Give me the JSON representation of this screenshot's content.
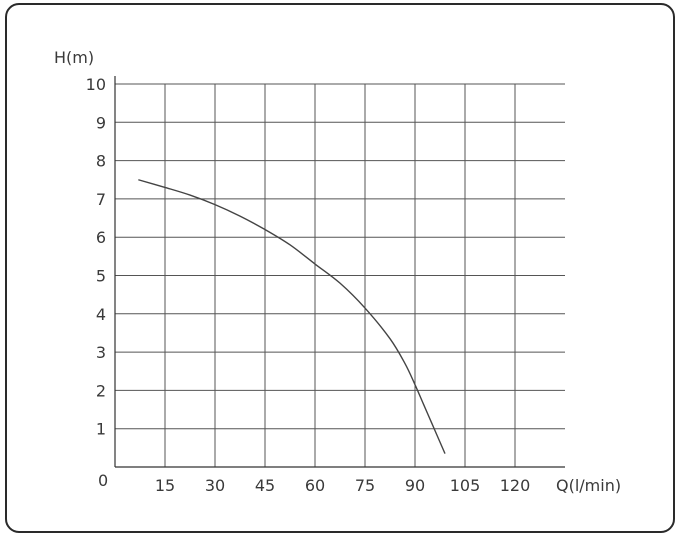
{
  "chart_data": {
    "type": "line",
    "title": "",
    "xlabel": "Q(l/min)",
    "ylabel": "H(m)",
    "origin_label": "0",
    "xlim": [
      0,
      135
    ],
    "ylim": [
      0,
      10
    ],
    "x_ticks": [
      15,
      30,
      45,
      60,
      75,
      90,
      105,
      120
    ],
    "x_tick_labels": [
      "15",
      "30",
      "45",
      "60",
      "75",
      "90",
      "105",
      "120"
    ],
    "y_ticks": [
      1,
      2,
      3,
      4,
      5,
      6,
      7,
      8,
      9,
      10
    ],
    "y_tick_labels": [
      "1",
      "2",
      "3",
      "4",
      "5",
      "6",
      "7",
      "8",
      "9",
      "10"
    ],
    "grid": true,
    "line_color": "#444444",
    "grid_color": "#555555",
    "series": [
      {
        "x": [
          7,
          15,
          22.5,
          30,
          37.5,
          45,
          52.5,
          60,
          67.5,
          75,
          82.5,
          87,
          90,
          92.5,
          95,
          97.5,
          99
        ],
        "y": [
          7.5,
          7.3,
          7.1,
          6.85,
          6.55,
          6.2,
          5.8,
          5.3,
          4.8,
          4.15,
          3.35,
          2.7,
          2.15,
          1.65,
          1.15,
          0.65,
          0.35
        ]
      }
    ]
  }
}
